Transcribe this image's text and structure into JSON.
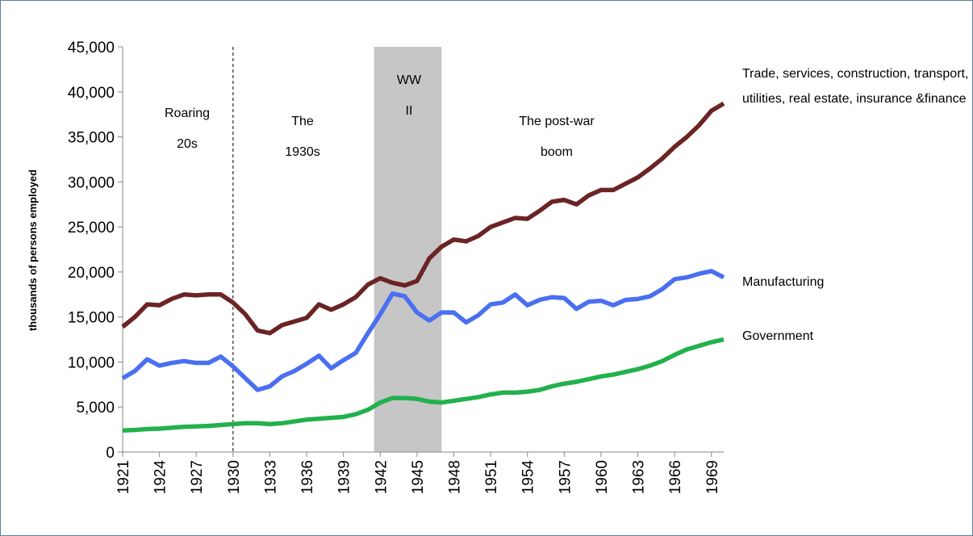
{
  "chart_data": {
    "type": "line",
    "y_label": "thousands of persons employed",
    "x": [
      1921,
      1922,
      1923,
      1924,
      1925,
      1926,
      1927,
      1928,
      1929,
      1930,
      1931,
      1932,
      1933,
      1934,
      1935,
      1936,
      1937,
      1938,
      1939,
      1940,
      1941,
      1942,
      1943,
      1944,
      1945,
      1946,
      1947,
      1948,
      1949,
      1950,
      1951,
      1952,
      1953,
      1954,
      1955,
      1956,
      1957,
      1958,
      1959,
      1960,
      1961,
      1962,
      1963,
      1964,
      1965,
      1966,
      1967,
      1968,
      1969,
      1970
    ],
    "xlim": [
      1921,
      1970
    ],
    "xticks": [
      1921,
      1924,
      1927,
      1930,
      1933,
      1936,
      1939,
      1942,
      1945,
      1948,
      1951,
      1954,
      1957,
      1960,
      1963,
      1966,
      1969
    ],
    "ylim": [
      0,
      45000
    ],
    "yticks": [
      0,
      {
        "value": 5000,
        "label": "5,000"
      },
      {
        "value": 10000,
        "label": "10,000"
      },
      {
        "value": 15000,
        "label": "15,000"
      },
      {
        "value": 20000,
        "label": "20,000"
      },
      {
        "value": 25000,
        "label": "25,000"
      },
      {
        "value": 30000,
        "label": "30,000"
      },
      {
        "value": 35000,
        "label": "35,000"
      },
      {
        "value": 40000,
        "label": "40,000"
      },
      {
        "value": 45000,
        "label": "45,000"
      }
    ],
    "grid": false,
    "shaded_span": [
      1941.5,
      1947
    ],
    "divider": 1930,
    "annotations": [
      {
        "lines": [
          "Roaring",
          "20s"
        ]
      },
      {
        "lines": [
          "The",
          "1930s"
        ]
      },
      {
        "lines": [
          "WW",
          "II"
        ]
      },
      {
        "lines": [
          "The post-war",
          "boom"
        ]
      }
    ],
    "series": [
      {
        "name": "Trade, services, construction, transport, utilities, real estate, insurance &finance",
        "color": "#6b2424",
        "values": [
          13900,
          15000,
          16400,
          16300,
          17000,
          17500,
          17400,
          17500,
          17500,
          16600,
          15300,
          13500,
          13200,
          14100,
          14500,
          14900,
          16400,
          15800,
          16400,
          17200,
          18600,
          19300,
          18800,
          18500,
          19000,
          21500,
          22800,
          23600,
          23400,
          24000,
          25000,
          25500,
          26000,
          25900,
          26800,
          27800,
          28000,
          27500,
          28500,
          29100,
          29100,
          29800,
          30500,
          31500,
          32600,
          33900,
          35000,
          36300,
          37900,
          38700
        ]
      },
      {
        "name": "Manufacturing",
        "color": "#4a6ff0",
        "values": [
          8200,
          9000,
          10300,
          9600,
          9900,
          10100,
          9900,
          9900,
          10600,
          9500,
          8200,
          6900,
          7300,
          8400,
          9000,
          9800,
          10700,
          9300,
          10200,
          11000,
          13200,
          15300,
          17600,
          17300,
          15500,
          14600,
          15500,
          15500,
          14400,
          15200,
          16400,
          16600,
          17500,
          16300,
          16900,
          17200,
          17100,
          15900,
          16700,
          16800,
          16300,
          16900,
          17000,
          17300,
          18100,
          19200,
          19400,
          19800,
          20100,
          19400
        ]
      },
      {
        "name": "Government",
        "color": "#22b14c",
        "values": [
          2400,
          2450,
          2550,
          2600,
          2700,
          2800,
          2850,
          2900,
          3000,
          3100,
          3200,
          3200,
          3100,
          3200,
          3400,
          3600,
          3700,
          3800,
          3900,
          4200,
          4700,
          5500,
          6000,
          6000,
          5900,
          5600,
          5500,
          5700,
          5900,
          6100,
          6400,
          6600,
          6600,
          6700,
          6900,
          7300,
          7600,
          7800,
          8100,
          8400,
          8600,
          8900,
          9200,
          9600,
          10100,
          10800,
          11400,
          11800,
          12200,
          12500
        ]
      }
    ]
  }
}
